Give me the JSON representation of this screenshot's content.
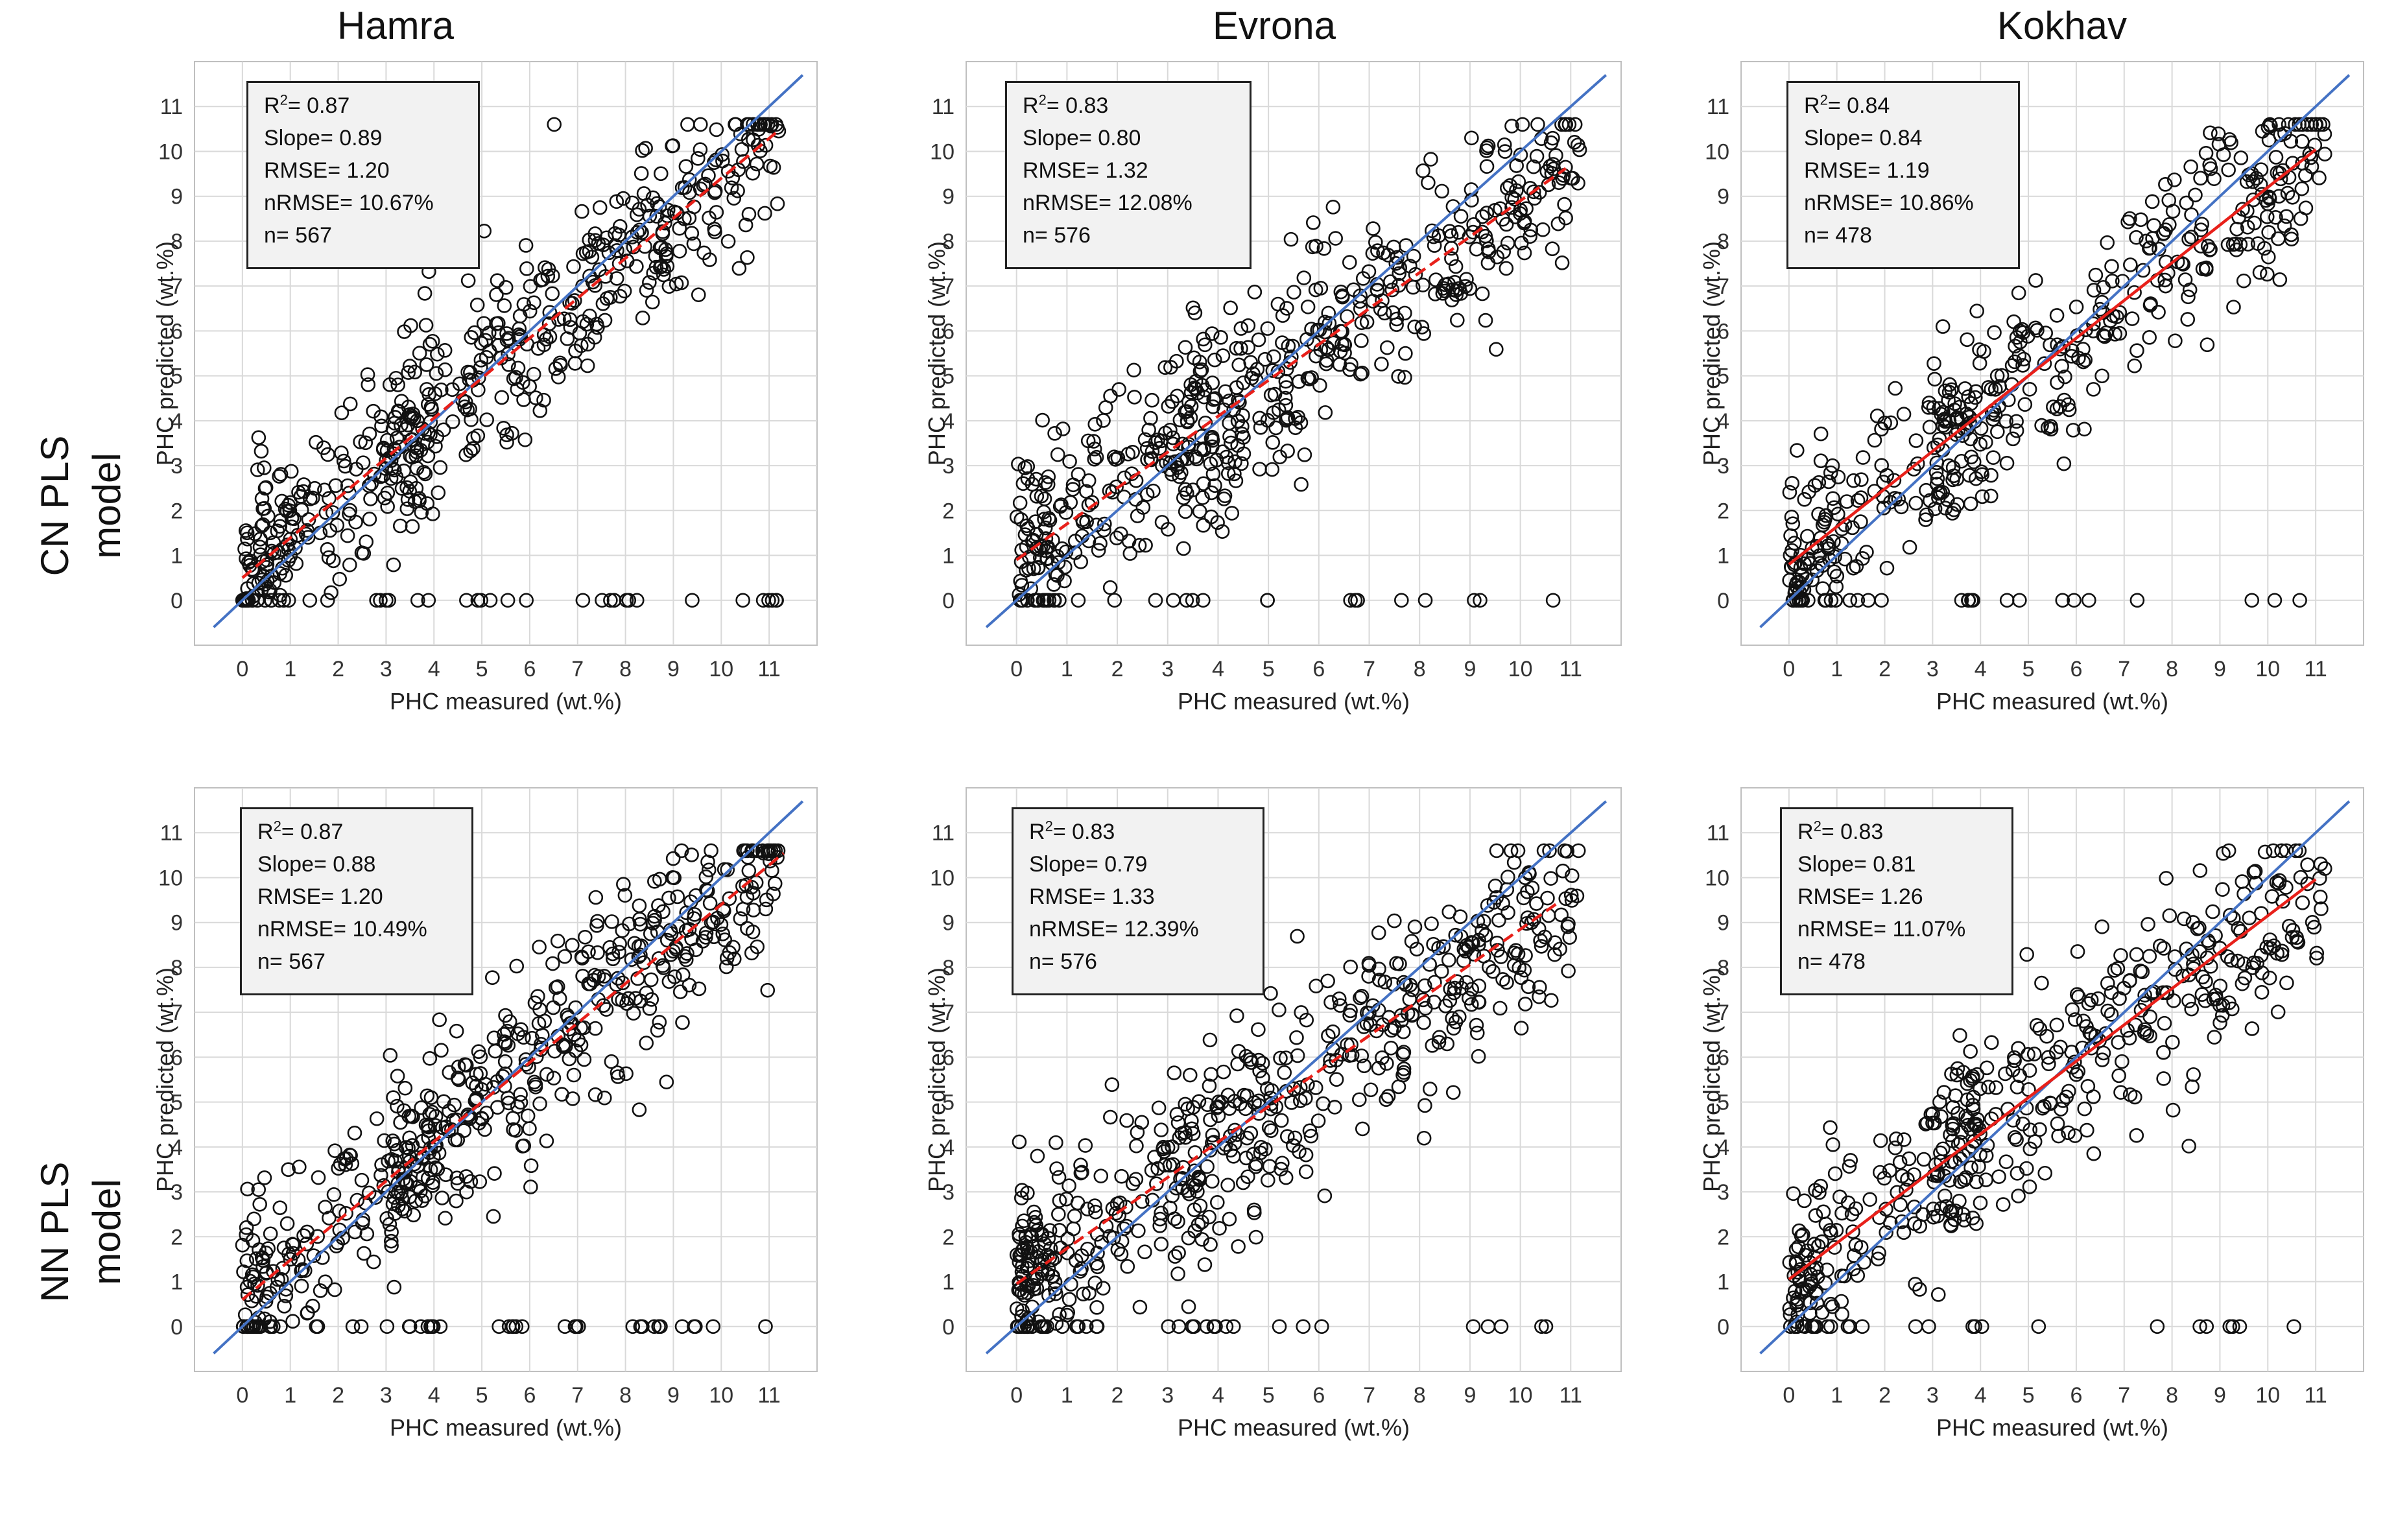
{
  "column_titles": [
    "Hamra",
    "Evrona",
    "Kokhav"
  ],
  "row_labels": [
    "CN PLS model",
    "NN PLS model"
  ],
  "colors": {
    "identity_line": "#4472c4",
    "fit_line": "#e8201a",
    "marker": "#111111",
    "grid": "#d9d9d9",
    "stats_box": "#f2f2f2"
  },
  "chart_data": [
    {
      "type": "scatter",
      "row": "CN PLS model",
      "site": "Hamra",
      "xlabel": "PHC measured (wt.%)",
      "ylabel": "PHC predicted (wt.%)",
      "xlim": [
        -1,
        12
      ],
      "ylim": [
        -1,
        12
      ],
      "xticks": [
        0,
        1,
        2,
        3,
        4,
        5,
        6,
        7,
        8,
        9,
        10,
        11
      ],
      "yticks": [
        0,
        1,
        2,
        3,
        4,
        5,
        6,
        7,
        8,
        9,
        10,
        11
      ],
      "grid": true,
      "stats": {
        "r2_label": "R",
        "r2_value": "= 0.87",
        "slope": "Slope= 0.89",
        "rmse": "RMSE= 1.20",
        "nrmse": "nRMSE= 10.67%",
        "n": "n= 567"
      },
      "r2": 0.87,
      "slope": 0.89,
      "rmse": 1.2,
      "nrmse_pct": 10.67,
      "n": 567,
      "fit_intercept": 0.5,
      "fit_x_range": [
        0,
        11.2
      ]
    },
    {
      "type": "scatter",
      "row": "CN PLS model",
      "site": "Evrona",
      "xlabel": "PHC measured (wt.%)",
      "ylabel": "PHC predicted (wt.%)",
      "xlim": [
        -1,
        12
      ],
      "ylim": [
        -1,
        12
      ],
      "xticks": [
        0,
        1,
        2,
        3,
        4,
        5,
        6,
        7,
        8,
        9,
        10,
        11
      ],
      "yticks": [
        0,
        1,
        2,
        3,
        4,
        5,
        6,
        7,
        8,
        9,
        10,
        11
      ],
      "grid": true,
      "stats": {
        "r2_label": "R",
        "r2_value": "= 0.83",
        "slope": "Slope= 0.80",
        "rmse": "RMSE= 1.32",
        "nrmse": "nRMSE= 12.08%",
        "n": "n= 576"
      },
      "r2": 0.83,
      "slope": 0.8,
      "rmse": 1.32,
      "nrmse_pct": 12.08,
      "n": 576,
      "fit_intercept": 0.9,
      "fit_x_range": [
        0,
        10.9
      ]
    },
    {
      "type": "scatter",
      "row": "CN PLS model",
      "site": "Kokhav",
      "xlabel": "PHC measured (wt.%)",
      "ylabel": "PHC predicted (wt.%)",
      "xlim": [
        -1,
        12
      ],
      "ylim": [
        -1,
        12
      ],
      "xticks": [
        0,
        1,
        2,
        3,
        4,
        5,
        6,
        7,
        8,
        9,
        10,
        11
      ],
      "yticks": [
        0,
        1,
        2,
        3,
        4,
        5,
        6,
        7,
        8,
        9,
        10,
        11
      ],
      "grid": true,
      "stats": {
        "r2_label": "R",
        "r2_value": "= 0.84",
        "slope": "Slope= 0.84",
        "rmse": "RMSE= 1.19",
        "nrmse": "nRMSE= 10.86%",
        "n": "n= 478"
      },
      "r2": 0.84,
      "slope": 0.84,
      "rmse": 1.19,
      "nrmse_pct": 10.86,
      "n": 478,
      "fit_intercept": 0.8,
      "fit_x_range": [
        0,
        11
      ]
    },
    {
      "type": "scatter",
      "row": "NN PLS model",
      "site": "Hamra",
      "xlabel": "PHC measured (wt.%)",
      "ylabel": "PHC predicted (wt.%)",
      "xlim": [
        -1,
        12
      ],
      "ylim": [
        -1,
        12
      ],
      "xticks": [
        0,
        1,
        2,
        3,
        4,
        5,
        6,
        7,
        8,
        9,
        10,
        11
      ],
      "yticks": [
        0,
        1,
        2,
        3,
        4,
        5,
        6,
        7,
        8,
        9,
        10,
        11
      ],
      "grid": true,
      "stats": {
        "r2_label": "R",
        "r2_value": "= 0.87",
        "slope": "Slope= 0.88",
        "rmse": "RMSE= 1.20",
        "nrmse": "nRMSE= 10.49%",
        "n": "n= 567"
      },
      "r2": 0.87,
      "slope": 0.88,
      "rmse": 1.2,
      "nrmse_pct": 10.49,
      "n": 567,
      "fit_intercept": 0.6,
      "fit_x_range": [
        0,
        11.3
      ]
    },
    {
      "type": "scatter",
      "row": "NN PLS model",
      "site": "Evrona",
      "xlabel": "PHC measured (wt.%)",
      "ylabel": "PHC predicted (wt.%)",
      "xlim": [
        -1,
        12
      ],
      "ylim": [
        -1,
        12
      ],
      "xticks": [
        0,
        1,
        2,
        3,
        4,
        5,
        6,
        7,
        8,
        9,
        10,
        11
      ],
      "yticks": [
        0,
        1,
        2,
        3,
        4,
        5,
        6,
        7,
        8,
        9,
        10,
        11
      ],
      "grid": true,
      "stats": {
        "r2_label": "R",
        "r2_value": "= 0.83",
        "slope": "Slope= 0.79",
        "rmse": "RMSE= 1.33",
        "nrmse": "nRMSE= 12.39%",
        "n": "n= 576"
      },
      "r2": 0.83,
      "slope": 0.79,
      "rmse": 1.33,
      "nrmse_pct": 12.39,
      "n": 576,
      "fit_intercept": 0.95,
      "fit_x_range": [
        0,
        10.8
      ]
    },
    {
      "type": "scatter",
      "row": "NN PLS model",
      "site": "Kokhav",
      "xlabel": "PHC measured (wt.%)",
      "ylabel": "PHC predicted (wt.%)",
      "xlim": [
        -1,
        12
      ],
      "ylim": [
        -1,
        12
      ],
      "xticks": [
        0,
        1,
        2,
        3,
        4,
        5,
        6,
        7,
        8,
        9,
        10,
        11
      ],
      "yticks": [
        0,
        1,
        2,
        3,
        4,
        5,
        6,
        7,
        8,
        9,
        10,
        11
      ],
      "grid": true,
      "stats": {
        "r2_label": "R",
        "r2_value": "= 0.83",
        "slope": "Slope= 0.81",
        "rmse": "RMSE= 1.26",
        "nrmse": "nRMSE= 11.07%",
        "n": "n= 478"
      },
      "r2": 0.83,
      "slope": 0.81,
      "rmse": 1.26,
      "nrmse_pct": 11.07,
      "n": 478,
      "fit_intercept": 1.05,
      "fit_x_range": [
        0,
        11
      ]
    }
  ]
}
